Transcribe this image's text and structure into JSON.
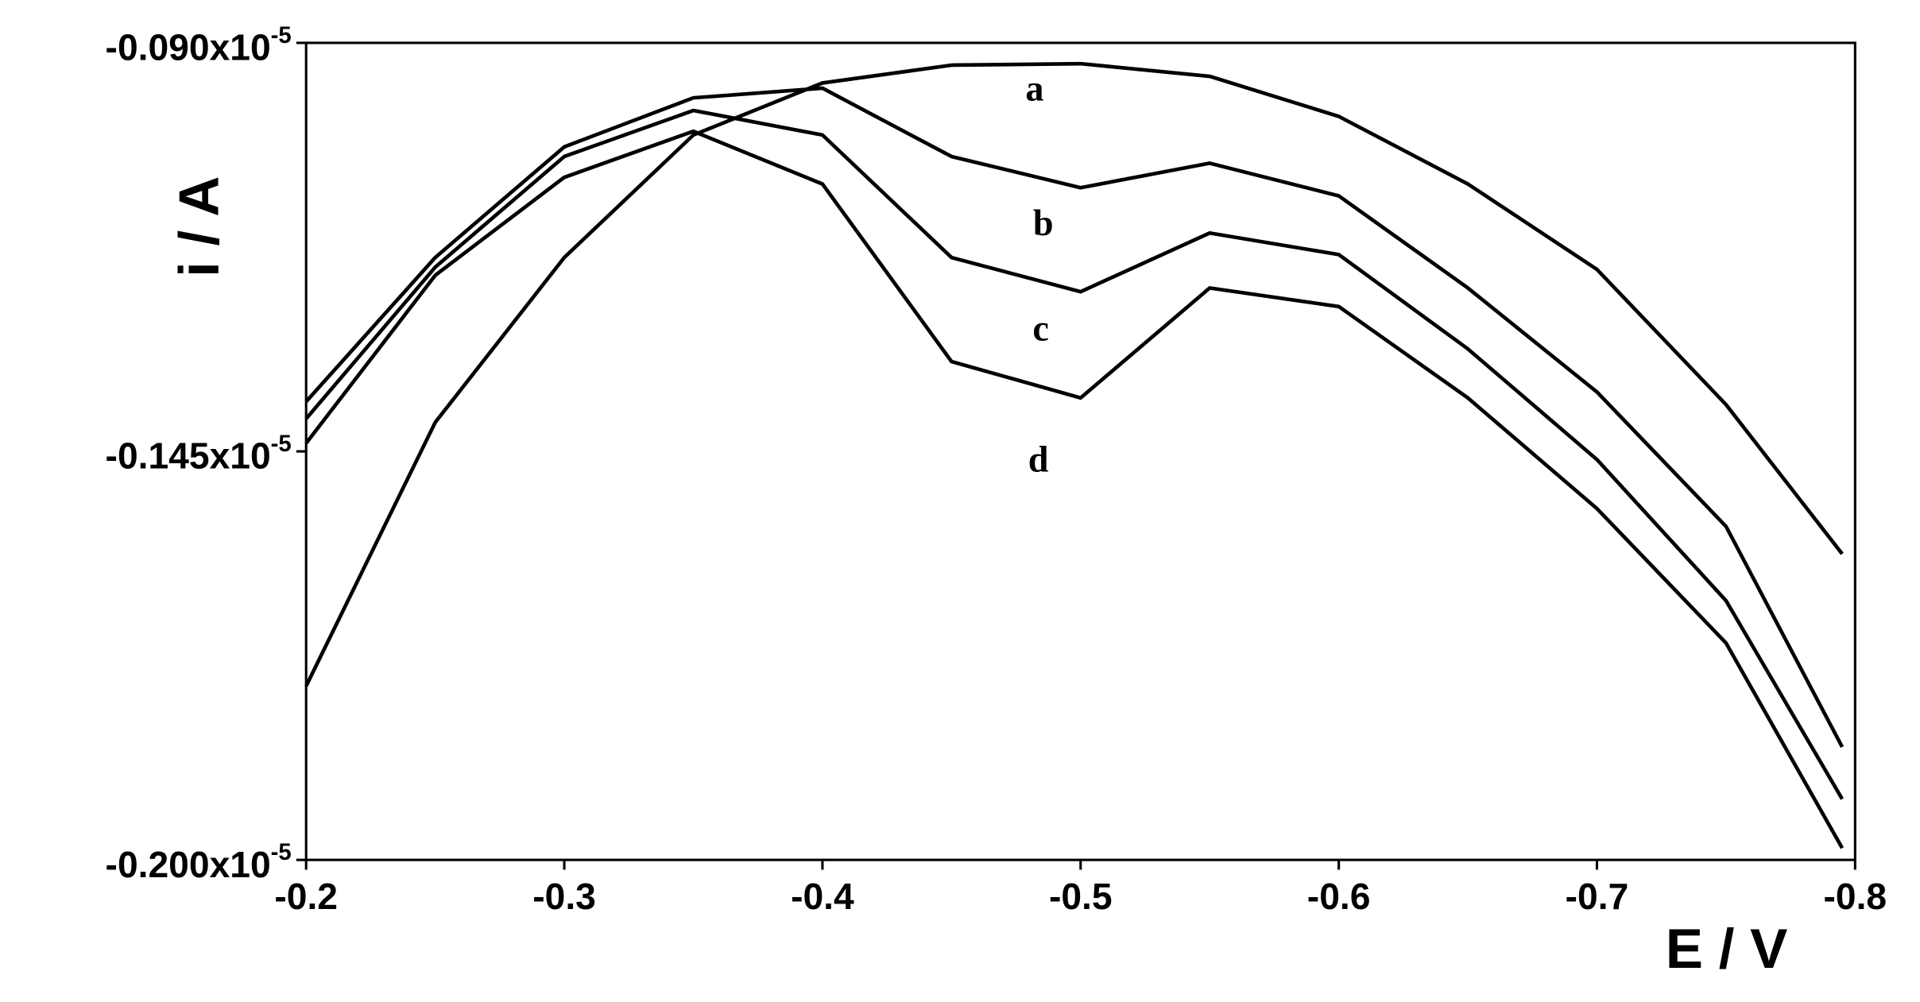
{
  "chart_data": {
    "type": "line",
    "x_label": "E / V",
    "y_label": "i / A",
    "x": [
      -0.2,
      -0.25,
      -0.3,
      -0.35,
      -0.4,
      -0.45,
      -0.5,
      -0.55,
      -0.6,
      -0.65,
      -0.7,
      -0.75,
      -0.795
    ],
    "series": [
      {
        "name": "a",
        "color": "#000000",
        "values": [
          -0.1766,
          -0.1411,
          -0.1189,
          -0.1024,
          -0.0954,
          -0.093,
          -0.0928,
          -0.0945,
          -0.0999,
          -0.109,
          -0.1205,
          -0.1387,
          -0.1588
        ]
      },
      {
        "name": "b",
        "color": "#000000",
        "values": [
          -0.1383,
          -0.1189,
          -0.104,
          -0.0974,
          -0.0961,
          -0.1053,
          -0.1095,
          -0.1062,
          -0.1106,
          -0.123,
          -0.137,
          -0.1551,
          -0.1848
        ]
      },
      {
        "name": "c",
        "color": "#000000",
        "values": [
          -0.1406,
          -0.1202,
          -0.1053,
          -0.0991,
          -0.1024,
          -0.1189,
          -0.1235,
          -0.1156,
          -0.1185,
          -0.1312,
          -0.1461,
          -0.1651,
          -0.1918
        ]
      },
      {
        "name": "d",
        "color": "#000000",
        "values": [
          -0.1439,
          -0.1213,
          -0.1081,
          -0.1019,
          -0.109,
          -0.1329,
          -0.1378,
          -0.123,
          -0.1255,
          -0.1378,
          -0.1527,
          -0.1708,
          -0.1984
        ]
      }
    ],
    "xlim": [
      -0.2,
      -0.8
    ],
    "xticks": [
      -0.2,
      -0.3,
      -0.4,
      -0.5,
      -0.6,
      -0.7,
      -0.8
    ],
    "ylim": [
      -0.2,
      -0.09
    ],
    "yticks": [
      {
        "value": -0.2,
        "label": "-0.200x10"
      },
      {
        "value": -0.145,
        "label": "-0.145x10"
      },
      {
        "value": -0.09,
        "label": "-0.090x10"
      }
    ],
    "y_tick_exponent": "-5",
    "grid": false
  }
}
